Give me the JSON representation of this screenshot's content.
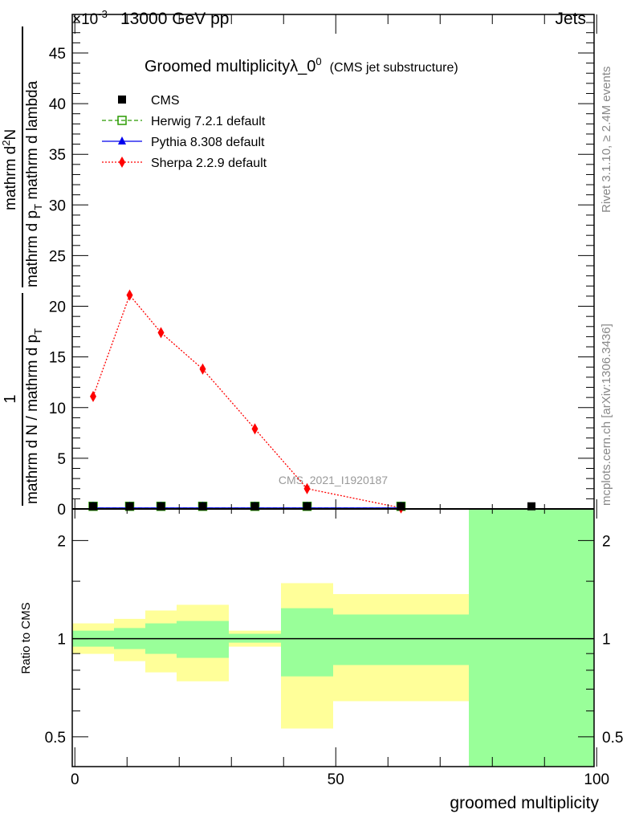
{
  "header": {
    "left": "13000 GeV pp",
    "right": "Jets",
    "multiplier": "×10",
    "multiplier_exp": "-3"
  },
  "side": {
    "rivet": "Rivet 3.1.10, ≥ 2.4M events",
    "mcplots": "mcplots.cern.ch [arXiv:1306.3436]"
  },
  "watermark": "CMS_2021_I1920187",
  "ylabel": {
    "num1": "1",
    "den1": "mathrm d N / mathrm d p",
    "sub1": "T",
    "num2": "mathrm d",
    "num2_sup": "2",
    "num2_end": "N",
    "den2": "mathrm d p",
    "sub2": "T",
    "den2_end": " mathrm d lambda"
  },
  "chart_data": [
    {
      "type": "scatter",
      "title": "Groomed multiplicityλ_0",
      "title_sup": "0",
      "subtitle": "(CMS jet substructure)",
      "xlabel": "groomed multiplicity",
      "ylabel": "1/N dN/dpT dpT dlambda (×10^-3)",
      "xlim": [
        -0.5,
        99.5
      ],
      "ylim": [
        0,
        48.8
      ],
      "yticks": [
        0,
        5,
        10,
        15,
        20,
        25,
        30,
        35,
        40,
        45
      ],
      "legend_position": "top-left",
      "x": [
        3.5,
        10.5,
        16.5,
        24.5,
        34.5,
        44.5,
        62.5,
        87.5
      ],
      "series": [
        {
          "name": "CMS",
          "color": "#000000",
          "marker": "square",
          "values": [
            0.1,
            0.1,
            0.1,
            0.1,
            0.1,
            0.1,
            0.1,
            0.1
          ]
        },
        {
          "name": "Herwig 7.2.1 default",
          "color": "#2a9a00",
          "marker": "open-square",
          "line": "dashed",
          "values": [
            0.1,
            0.1,
            0.1,
            0.1,
            0.1,
            0.1,
            0.1,
            null
          ]
        },
        {
          "name": "Pythia 8.308 default",
          "color": "#0000ee",
          "marker": "triangle",
          "line": "solid",
          "values": [
            0.1,
            0.1,
            0.1,
            0.1,
            0.1,
            0.1,
            0.1,
            null
          ]
        },
        {
          "name": "Sherpa 2.2.9 default",
          "color": "#ff0000",
          "marker": "diamond",
          "line": "dotted",
          "values": [
            11.1,
            21.1,
            17.4,
            13.8,
            7.9,
            2.0,
            0.1,
            null
          ]
        }
      ]
    },
    {
      "type": "area",
      "ylabel": "Ratio to CMS",
      "yscale": "log",
      "ylim": [
        0.405,
        2.5
      ],
      "yticks": [
        0.5,
        1,
        2
      ],
      "xticks": [
        0,
        50,
        100
      ],
      "bin_edges": [
        -0.5,
        7.5,
        13.5,
        19.5,
        29.5,
        39.5,
        49.5,
        75.5,
        99.5
      ],
      "band_outer": {
        "color": "#ffff99",
        "low": [
          0.898,
          0.853,
          0.788,
          0.74,
          0.945,
          0.53,
          0.643,
          null
        ],
        "high": [
          1.114,
          1.15,
          1.22,
          1.27,
          1.058,
          1.48,
          1.37,
          null
        ]
      },
      "band_inner": {
        "color": "#99ff99",
        "low": [
          0.945,
          0.929,
          0.898,
          0.873,
          0.972,
          0.766,
          0.83,
          0.3
        ],
        "high": [
          1.058,
          1.078,
          1.114,
          1.133,
          1.035,
          1.24,
          1.186,
          3.0
        ]
      }
    }
  ]
}
